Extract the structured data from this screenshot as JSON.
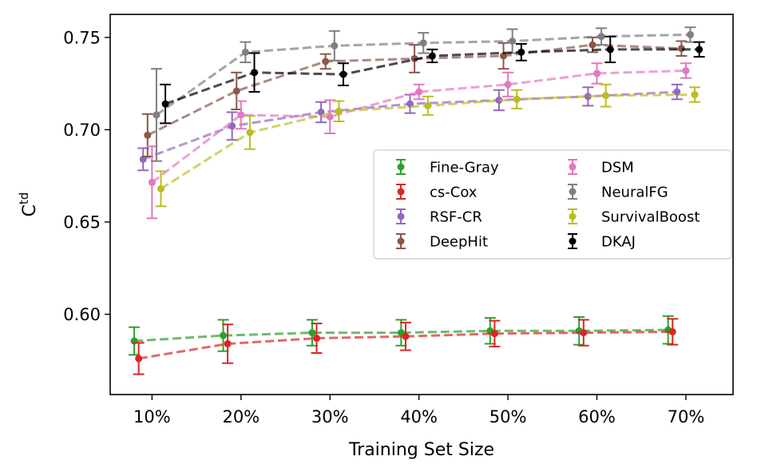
{
  "chart_data": {
    "type": "line",
    "title": "",
    "xlabel": "Training Set Size",
    "ylabel": "C",
    "ylabel_superscript": "td",
    "x": [
      10,
      20,
      30,
      40,
      50,
      60,
      70
    ],
    "x_tick_labels": [
      "10%",
      "20%",
      "30%",
      "40%",
      "50%",
      "60%",
      "70%"
    ],
    "xlim": [
      5.3,
      75.3
    ],
    "ylim": [
      0.5565,
      0.7625
    ],
    "y_ticks": [
      0.6,
      0.65,
      0.7,
      0.75
    ],
    "y_tick_labels": [
      "0.60",
      "0.65",
      "0.70",
      "0.75"
    ],
    "grid": false,
    "legend": {
      "placement": "center-right",
      "columns": 2
    },
    "series": [
      {
        "name": "Fine-Gray",
        "color": "#2ca02c",
        "offset": -2,
        "values": [
          0.5855,
          0.5885,
          0.59,
          0.59,
          0.591,
          0.591,
          0.5915
        ],
        "errors": [
          0.0075,
          0.0085,
          0.007,
          0.007,
          0.007,
          0.0075,
          0.0075
        ]
      },
      {
        "name": "cs-Cox",
        "color": "#d62728",
        "offset": -1.5,
        "values": [
          0.576,
          0.584,
          0.587,
          0.588,
          0.5895,
          0.59,
          0.5905
        ],
        "errors": [
          0.0085,
          0.0105,
          0.008,
          0.0075,
          0.007,
          0.007,
          0.007
        ]
      },
      {
        "name": "RSF-CR",
        "color": "#9467bd",
        "offset": -1,
        "values": [
          0.684,
          0.702,
          0.7095,
          0.714,
          0.716,
          0.718,
          0.7205
        ],
        "errors": [
          0.006,
          0.0075,
          0.0055,
          0.005,
          0.0055,
          0.005,
          0.004
        ]
      },
      {
        "name": "DeepHit",
        "color": "#8c564b",
        "offset": -0.5,
        "values": [
          0.697,
          0.721,
          0.737,
          0.7385,
          0.74,
          0.746,
          0.744
        ],
        "errors": [
          0.0115,
          0.01,
          0.004,
          0.0075,
          0.007,
          0.004,
          0.004
        ]
      },
      {
        "name": "DSM",
        "color": "#e377c2",
        "offset": 0,
        "values": [
          0.6715,
          0.708,
          0.707,
          0.7205,
          0.7245,
          0.7305,
          0.732
        ],
        "errors": [
          0.0195,
          0.0075,
          0.009,
          0.004,
          0.0065,
          0.0055,
          0.004
        ]
      },
      {
        "name": "NeuralFG",
        "color": "#7f7f7f",
        "offset": 0.5,
        "values": [
          0.708,
          0.742,
          0.7455,
          0.747,
          0.748,
          0.7505,
          0.7515
        ],
        "errors": [
          0.025,
          0.0055,
          0.008,
          0.0055,
          0.0065,
          0.0045,
          0.004
        ]
      },
      {
        "name": "SurvivalBoost",
        "color": "#bcbd22",
        "offset": 1,
        "values": [
          0.668,
          0.6985,
          0.71,
          0.713,
          0.7165,
          0.7185,
          0.719
        ],
        "errors": [
          0.0095,
          0.009,
          0.0055,
          0.005,
          0.005,
          0.006,
          0.004
        ]
      },
      {
        "name": "DKAJ",
        "color": "#000000",
        "offset": 1.5,
        "values": [
          0.714,
          0.731,
          0.73,
          0.74,
          0.742,
          0.7435,
          0.7435
        ],
        "errors": [
          0.0105,
          0.0105,
          0.006,
          0.0035,
          0.0045,
          0.007,
          0.004
        ]
      }
    ]
  }
}
